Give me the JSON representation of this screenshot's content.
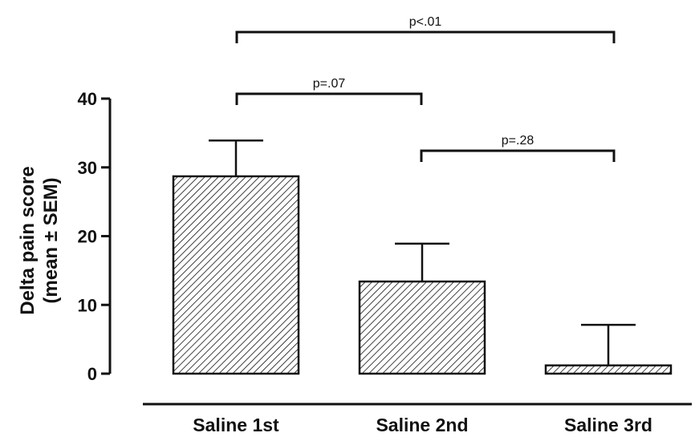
{
  "chart_data": {
    "type": "bar",
    "categories": [
      "Saline 1st",
      "Saline 2nd",
      "Saline 3rd"
    ],
    "values": [
      28.7,
      13.4,
      1.2
    ],
    "error_upper": [
      33.9,
      18.9,
      7.1
    ],
    "ylabel_lines": [
      "Delta pain score",
      "(mean ± SEM)"
    ],
    "ylim": [
      0,
      40
    ],
    "yticks": [
      0,
      10,
      20,
      30,
      40
    ],
    "bar_fill": "hatched",
    "colors": {
      "bar_stroke": "#111111",
      "hatch": "#111111",
      "background": "#ffffff"
    },
    "grid": false,
    "legend": false,
    "significance": [
      {
        "from": 0,
        "to": 2,
        "label": "p<.01",
        "level": 3
      },
      {
        "from": 0,
        "to": 1,
        "label": "p=.07",
        "level": 2
      },
      {
        "from": 1,
        "to": 2,
        "label": "p=.28",
        "level": 1
      }
    ]
  }
}
